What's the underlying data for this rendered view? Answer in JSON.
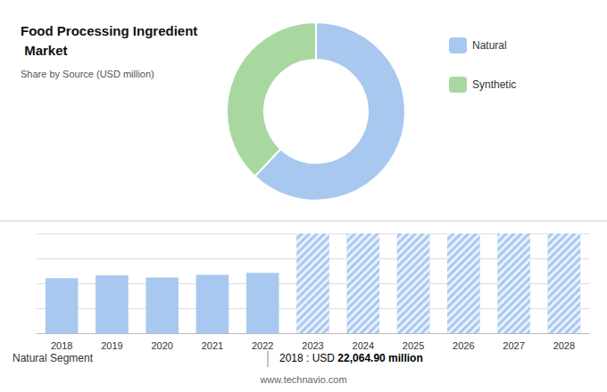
{
  "chart_data": [
    {
      "type": "pie",
      "title": "Food Processing Ingredient Market",
      "subtitle": "Share by Source (USD million)",
      "categories": [
        "Natural",
        "Synthetic"
      ],
      "values": [
        62,
        38
      ],
      "colors": [
        "#a8c8f0",
        "#a8d8a0"
      ],
      "legend": "right"
    },
    {
      "type": "bar",
      "categories": [
        2018,
        2019,
        2020,
        2021,
        2022,
        2023,
        2024,
        2025,
        2026,
        2027,
        2028
      ],
      "series": [
        {
          "color": "#a8c8f0",
          "values": [
            22064.9,
            23200,
            22300,
            23400,
            24200,
            null,
            null,
            null,
            null,
            null,
            null
          ]
        },
        {
          "color": "#a8c8f0",
          "marker": "hatch",
          "values": [
            null,
            null,
            null,
            null,
            null,
            40000,
            40000,
            40000,
            40000,
            40000,
            40000
          ]
        }
      ],
      "ylim": [
        0,
        40000
      ],
      "yticks": [
        0,
        10000,
        20000,
        30000,
        40000
      ],
      "grid": true,
      "tick_labels": "x",
      "annotations": [
        "Natural Segment",
        "2018 : USD ",
        "22,064.90 million",
        "www.technavio.com"
      ]
    }
  ]
}
